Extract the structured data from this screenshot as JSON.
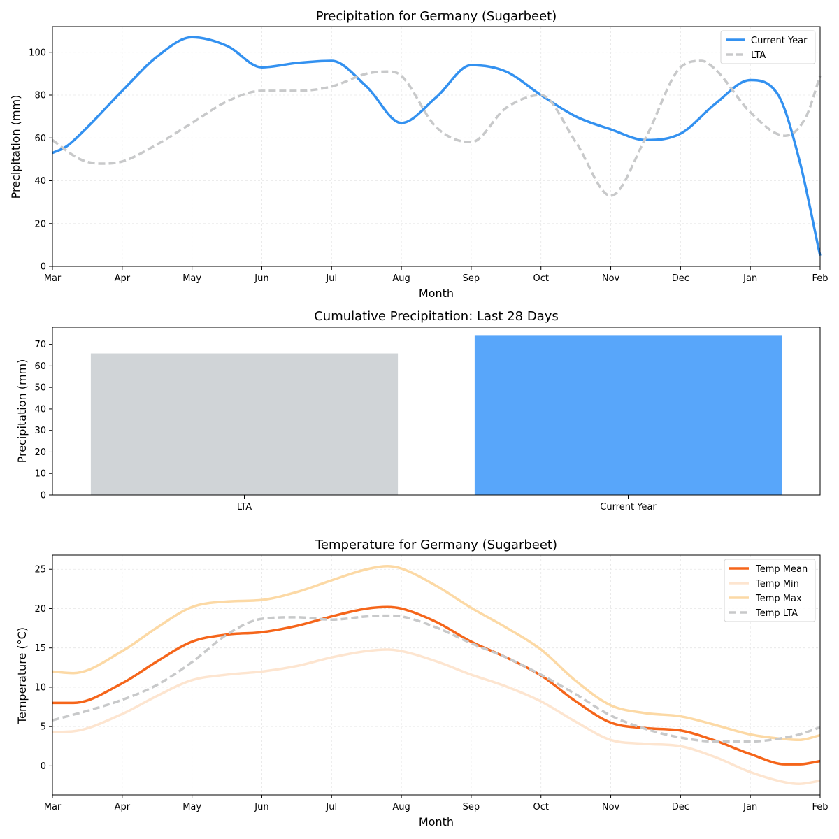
{
  "chart_data": [
    {
      "type": "line",
      "title": "Precipitation for Germany (Sugarbeet)",
      "xlabel": "Month",
      "ylabel": "Precipitation (mm)",
      "x_ticks": [
        "Mar",
        "Apr",
        "May",
        "Jun",
        "Jul",
        "Aug",
        "Sep",
        "Oct",
        "Nov",
        "Dec",
        "Jan",
        "Feb"
      ],
      "y_ticks": [
        0,
        20,
        40,
        60,
        80,
        100
      ],
      "xlim": [
        0,
        11
      ],
      "ylim": [
        0,
        112
      ],
      "grid": true,
      "legend": "top-right",
      "series": [
        {
          "name": "Current Year",
          "color": "#3391f0",
          "style": "solid",
          "x": [
            0,
            0.2,
            0.5,
            1.0,
            1.5,
            2.0,
            2.5,
            3.0,
            3.5,
            4.0,
            4.5,
            5.0,
            5.5,
            6.0,
            6.5,
            7.0,
            7.5,
            8.0,
            8.5,
            9.0,
            9.5,
            10.0,
            10.4,
            10.7,
            11.0
          ],
          "values": [
            53,
            56,
            65,
            82,
            98,
            107,
            103,
            93,
            95,
            96,
            84,
            67,
            79,
            94,
            91,
            80,
            70,
            64,
            59,
            62,
            76,
            87,
            80,
            50,
            5
          ]
        },
        {
          "name": "LTA",
          "color": "#c8c9ca",
          "style": "dashed",
          "x": [
            0,
            0.4,
            0.7,
            1.0,
            1.5,
            2.0,
            2.5,
            3.0,
            3.5,
            4.0,
            4.5,
            4.8,
            5.0,
            5.5,
            6.0,
            6.5,
            7.0,
            7.5,
            8.0,
            8.5,
            9.0,
            9.3,
            9.5,
            10.0,
            10.5,
            10.8,
            11.0
          ],
          "values": [
            59,
            50,
            48,
            49,
            57,
            67,
            77,
            82,
            82,
            84,
            90,
            91,
            89,
            65,
            58,
            74,
            80,
            58,
            33,
            60,
            93,
            96,
            92,
            72,
            61,
            70,
            89
          ]
        }
      ]
    },
    {
      "type": "bar",
      "title": "Cumulative Precipitation: Last 28 Days",
      "ylabel": "Precipitation (mm)",
      "categories": [
        "LTA",
        "Current Year"
      ],
      "values": [
        65.8,
        74.3
      ],
      "colors": [
        "#d0d4d7",
        "#58a6fa"
      ],
      "y_ticks": [
        0,
        10,
        20,
        30,
        40,
        50,
        60,
        70
      ],
      "ylim": [
        0,
        78
      ],
      "grid": false
    },
    {
      "type": "line",
      "title": "Temperature for Germany (Sugarbeet)",
      "xlabel": "Month",
      "ylabel": "Temperature (°C)",
      "x_ticks": [
        "Mar",
        "Apr",
        "May",
        "Jun",
        "Jul",
        "Aug",
        "Sep",
        "Oct",
        "Nov",
        "Dec",
        "Jan",
        "Feb"
      ],
      "y_ticks": [
        0,
        5,
        10,
        15,
        20,
        25
      ],
      "xlim": [
        0,
        11
      ],
      "ylim": [
        -3.7,
        26.8
      ],
      "grid": true,
      "legend": "top-right",
      "series": [
        {
          "name": "Temp Mean",
          "color": "#f5651a",
          "style": "solid",
          "x": [
            0,
            0.3,
            1,
            1.5,
            2,
            2.5,
            3,
            3.5,
            4,
            4.5,
            4.8,
            5,
            5.5,
            6,
            6.5,
            7,
            7.5,
            8,
            8.5,
            9,
            9.5,
            10,
            10.5,
            10.7,
            11
          ],
          "values": [
            8,
            8,
            10.5,
            13.3,
            15.8,
            16.7,
            17,
            17.8,
            19,
            20,
            20.2,
            20,
            18.3,
            15.8,
            13.8,
            11.5,
            8.2,
            5.5,
            4.8,
            4.5,
            3.2,
            1.5,
            0.2,
            0.2,
            0.6
          ]
        },
        {
          "name": "Temp Min",
          "color": "#fde5d0",
          "style": "solid",
          "x": [
            0,
            0.3,
            1,
            1.5,
            2,
            2.5,
            3,
            3.5,
            4,
            4.5,
            4.8,
            5,
            5.5,
            6,
            6.5,
            7,
            7.5,
            8,
            8.5,
            9,
            9.5,
            10,
            10.5,
            10.7,
            11
          ],
          "values": [
            4.3,
            4.4,
            6.6,
            8.9,
            10.9,
            11.6,
            12,
            12.7,
            13.8,
            14.6,
            14.8,
            14.6,
            13.3,
            11.6,
            10.1,
            8.2,
            5.6,
            3.3,
            2.8,
            2.5,
            1.1,
            -0.8,
            -2.1,
            -2.3,
            -1.9
          ]
        },
        {
          "name": "Temp Max",
          "color": "#fcd9a5",
          "style": "solid",
          "x": [
            0,
            0.3,
            1,
            1.5,
            2,
            2.5,
            3,
            3.5,
            4,
            4.5,
            4.8,
            5,
            5.5,
            6,
            6.5,
            7,
            7.5,
            8,
            8.5,
            9,
            9.5,
            10,
            10.5,
            10.7,
            11
          ],
          "values": [
            12,
            11.8,
            14.6,
            17.6,
            20.2,
            20.9,
            21.1,
            22.1,
            23.6,
            25,
            25.4,
            25.1,
            22.9,
            20.1,
            17.6,
            14.8,
            10.8,
            7.7,
            6.7,
            6.3,
            5.2,
            4,
            3.4,
            3.3,
            3.9
          ]
        },
        {
          "name": "Temp LTA",
          "color": "#c8c9ca",
          "style": "dashed",
          "x": [
            0,
            0.5,
            1,
            1.5,
            2,
            2.5,
            3,
            3.5,
            4,
            4.5,
            4.8,
            5,
            5.5,
            6,
            6.5,
            7,
            7.5,
            8,
            8.5,
            9,
            9.5,
            10,
            10.5,
            10.7,
            11
          ],
          "values": [
            5.8,
            7,
            8.4,
            10.3,
            13.2,
            16.7,
            18.7,
            18.9,
            18.6,
            19,
            19.1,
            19,
            17.6,
            15.6,
            13.8,
            11.6,
            9.1,
            6.4,
            4.7,
            3.6,
            3.1,
            3.1,
            3.6,
            4,
            4.9
          ]
        }
      ]
    }
  ]
}
